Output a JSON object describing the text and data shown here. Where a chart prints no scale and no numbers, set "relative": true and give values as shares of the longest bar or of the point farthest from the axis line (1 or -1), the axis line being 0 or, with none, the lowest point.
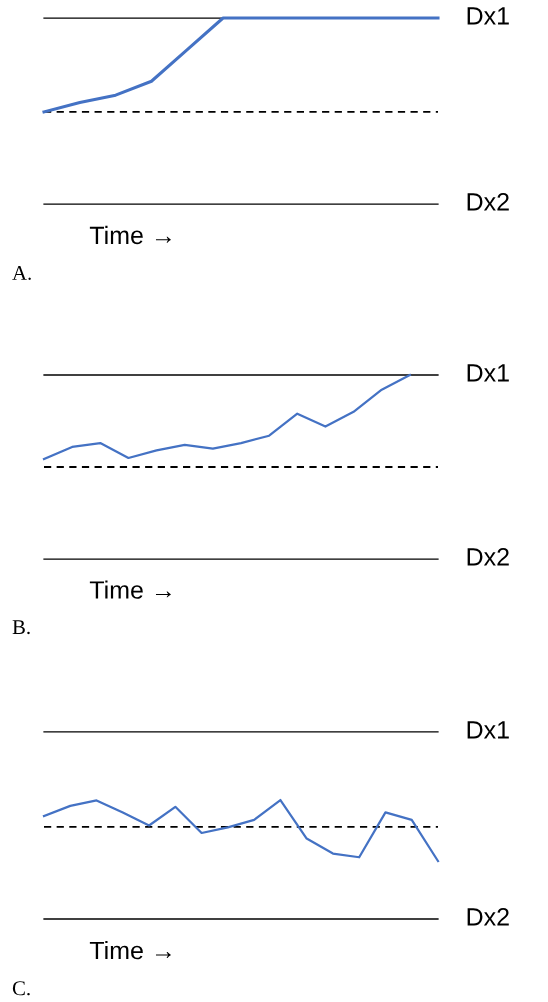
{
  "chart_data": [
    {
      "type": "line",
      "title": "A.",
      "xlabel": "Time →",
      "relative": true,
      "categories": [
        null,
        null,
        null,
        null,
        null,
        null,
        null,
        null,
        null,
        null,
        null,
        null
      ],
      "series": [
        {
          "color": "#4472c4",
          "values": [
            0.495,
            0.546,
            0.585,
            0.66,
            0.83,
            1.0,
            1.0,
            1.0,
            1.0,
            1.0,
            1.0,
            1.0
          ]
        }
      ],
      "ref_lines": [
        {
          "axis": "y",
          "value": 1.0,
          "label": "Dx1",
          "color": "#000000",
          "line_style": "solid"
        },
        {
          "axis": "y",
          "value": 0.495,
          "label": null,
          "color": "#000000",
          "line_style": "dashed"
        },
        {
          "axis": "y",
          "value": 0,
          "label": "Dx2",
          "color": "#000000",
          "line_style": "solid"
        }
      ]
    },
    {
      "type": "line",
      "title": "B.",
      "xlabel": "Time →",
      "relative": true,
      "categories": [
        null,
        null,
        null,
        null,
        null,
        null,
        null,
        null,
        null,
        null,
        null,
        null,
        null,
        null,
        null
      ],
      "series": [
        {
          "color": "#4472c4",
          "values": [
            0.543,
            0.609,
            0.63,
            0.549,
            0.59,
            0.62,
            0.6,
            0.63,
            0.67,
            0.79,
            0.72,
            0.8,
            0.92,
            1.0,
            null
          ]
        }
      ],
      "ref_lines": [
        {
          "axis": "y",
          "value": 1.0,
          "label": "Dx1",
          "color": "#000000",
          "line_style": "solid"
        },
        {
          "axis": "y",
          "value": 0.5,
          "label": null,
          "color": "#000000",
          "line_style": "dashed"
        },
        {
          "axis": "y",
          "value": 0,
          "label": "Dx2",
          "color": "#000000",
          "line_style": "solid"
        }
      ]
    },
    {
      "type": "line",
      "title": "C.",
      "xlabel": "Time →",
      "relative": true,
      "categories": [
        null,
        null,
        null,
        null,
        null,
        null,
        null,
        null,
        null,
        null,
        null,
        null,
        null,
        null,
        null,
        null
      ],
      "series": [
        {
          "color": "#4472c4",
          "values": [
            0.866,
            0.951,
            0.997,
            0.896,
            0.786,
            0.943,
            0.723,
            0.77,
            0.833,
            1.0,
            0.676,
            0.55,
            0.519,
            0.896,
            0.833,
            0.487
          ]
        }
      ],
      "ref_lines": [
        {
          "axis": "y",
          "value": 1.572,
          "label": "Dx1",
          "color": "#000000",
          "line_style": "solid"
        },
        {
          "axis": "y",
          "value": 0.774,
          "label": null,
          "color": "#000000",
          "line_style": "dashed"
        },
        {
          "axis": "y",
          "value": 0,
          "label": "Dx2",
          "color": "#000000",
          "line_style": "solid"
        }
      ]
    }
  ]
}
